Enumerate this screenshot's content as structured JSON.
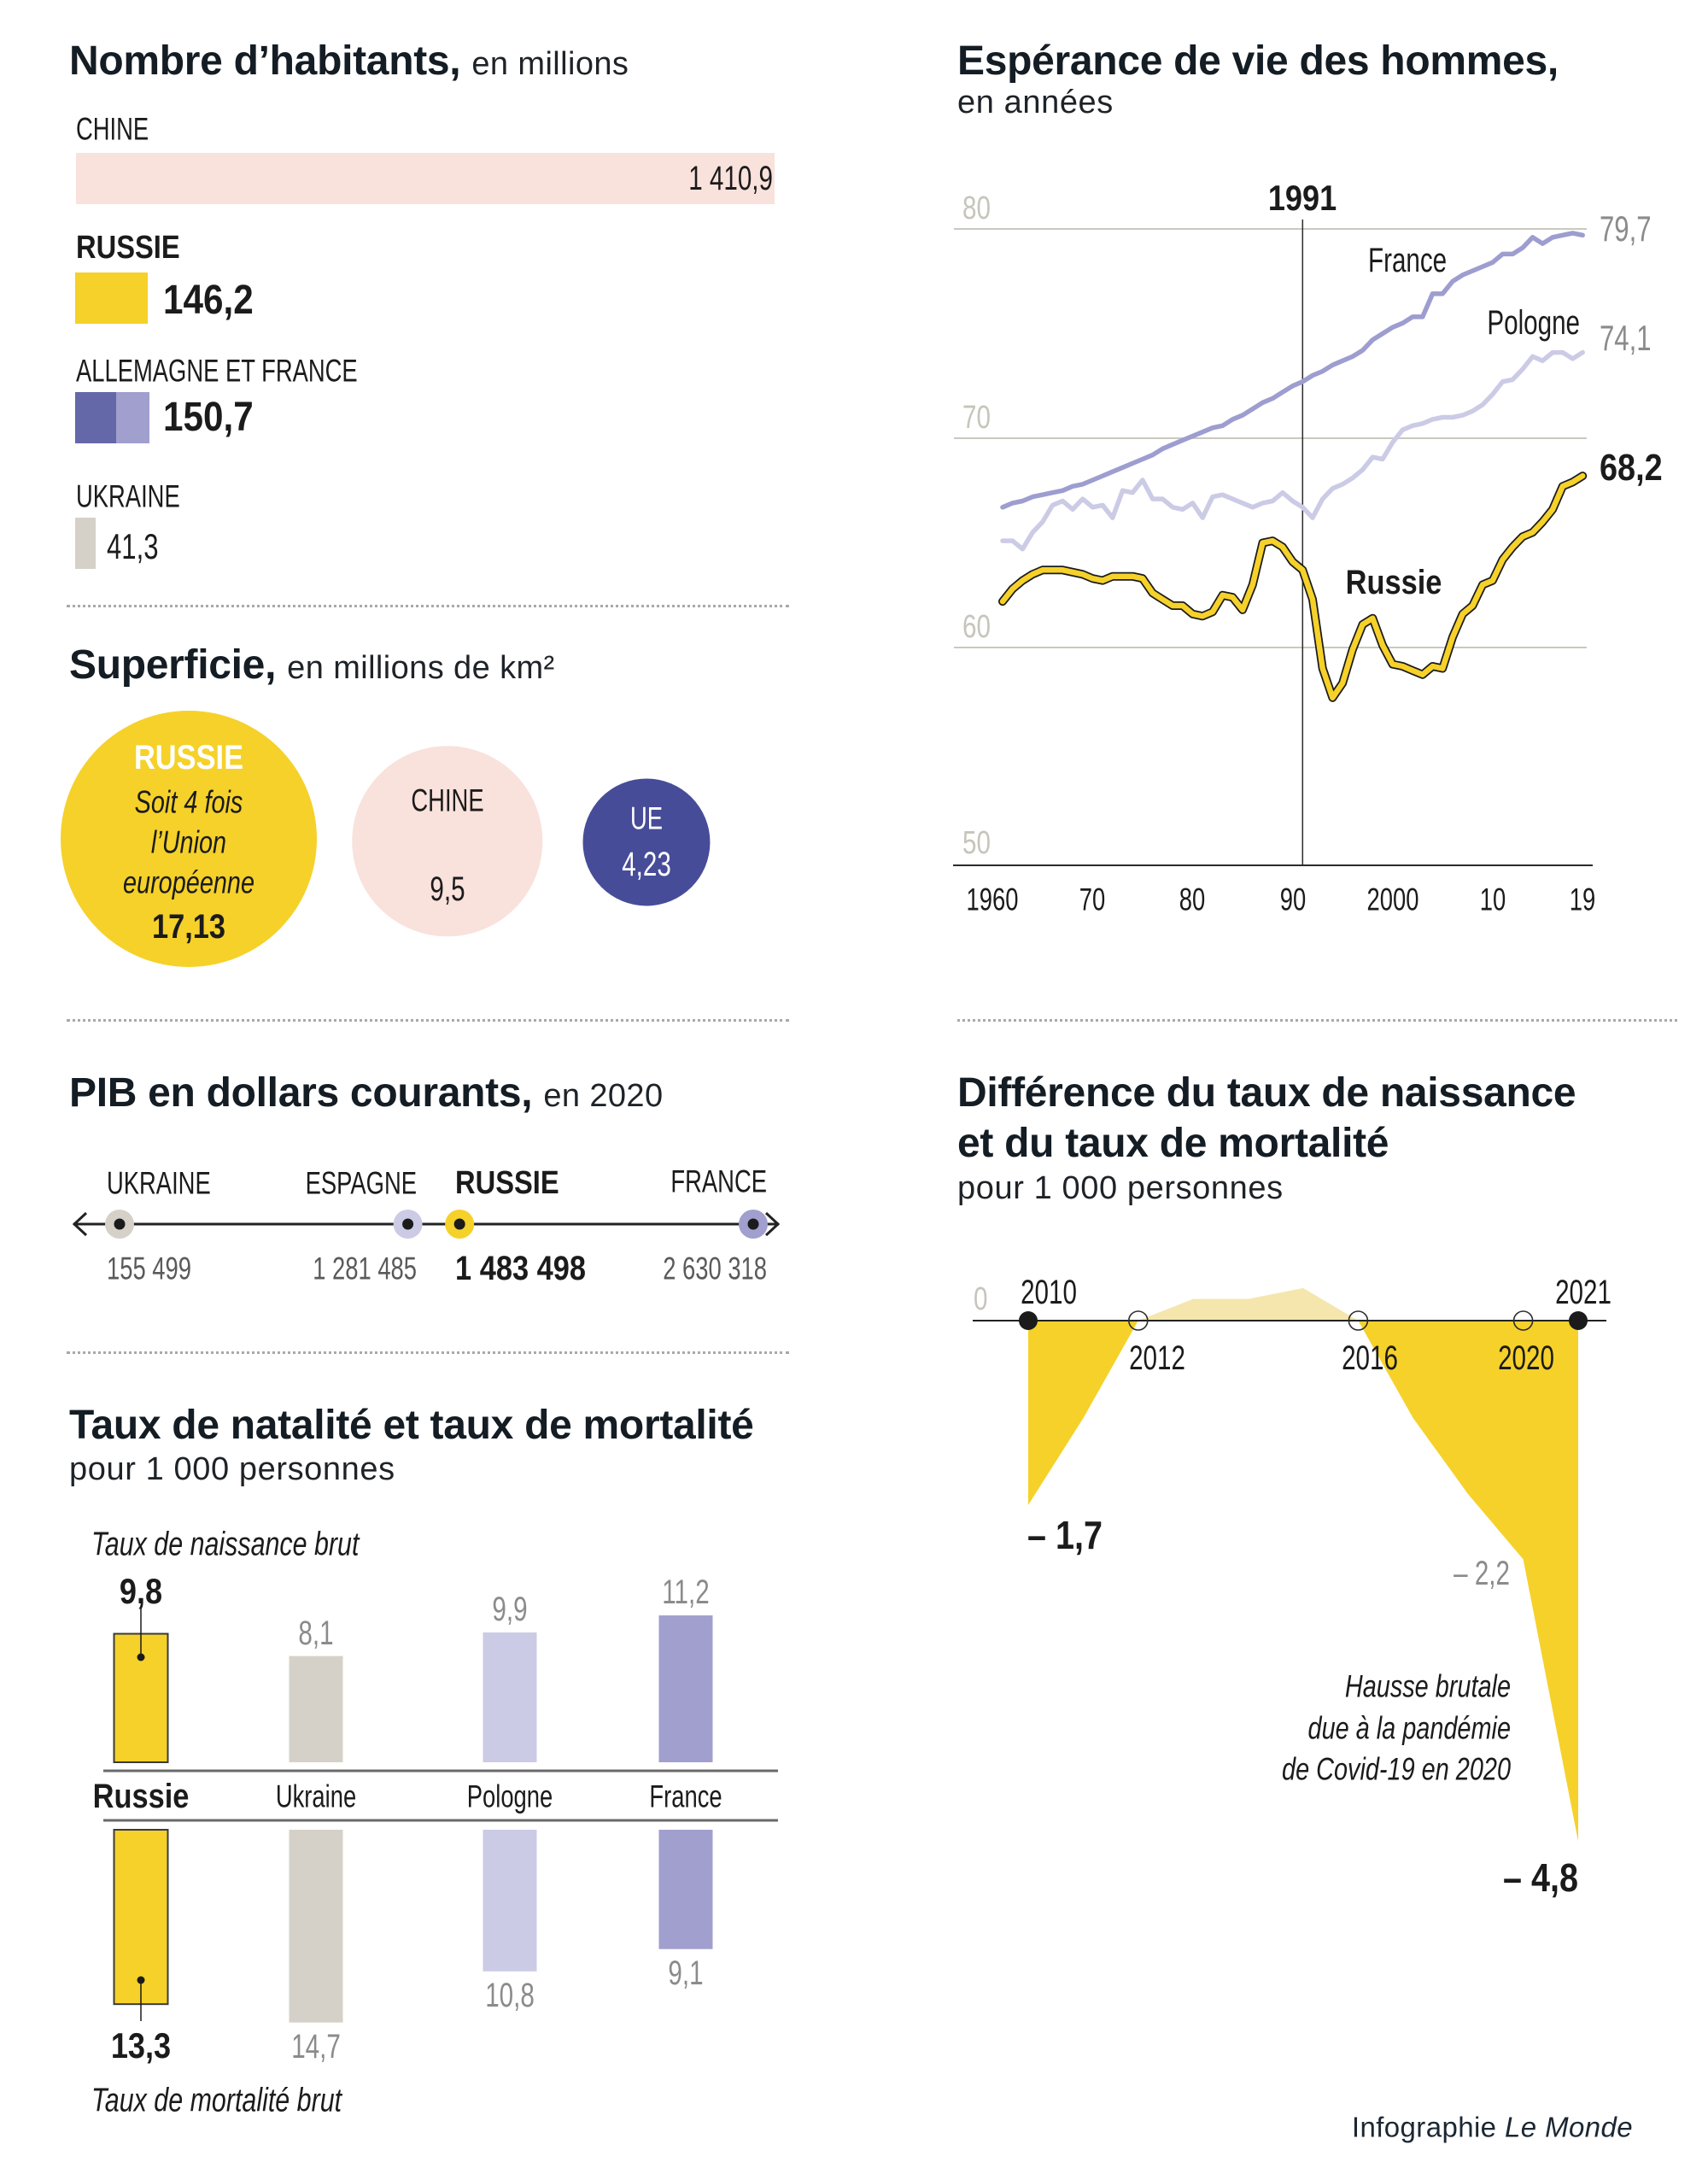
{
  "credit": {
    "prefix": "Infographie",
    "brand": "Le Monde"
  },
  "chart_data": [
    {
      "id": "population",
      "type": "bar",
      "title": "Nombre d’habitants,",
      "subtitle": "en millions",
      "categories": [
        "CHINE",
        "RUSSIE",
        "ALLEMAGNE ET FRANCE",
        "UKRAINE"
      ],
      "values": [
        1410.9,
        146.2,
        150.7,
        41.3
      ],
      "value_labels": [
        "1 410,9",
        "146,2",
        "150,7",
        "41,3"
      ],
      "colors": [
        "#F9E1DC",
        "#F5D12A",
        null,
        "#D5D1C8"
      ],
      "segmented_category": "ALLEMAGNE ET FRANCE",
      "segments": [
        {
          "name": "Allemagne",
          "value": 82.2,
          "color": "#6467A8"
        },
        {
          "name": "France",
          "value": 68.5,
          "color": "#A19FCE"
        }
      ],
      "highlight": "RUSSIE"
    },
    {
      "id": "superficie",
      "type": "scatter",
      "encoding": "bubble area proportional to value",
      "title": "Superficie,",
      "subtitle": "en millions de km²",
      "categories": [
        "RUSSIE",
        "CHINE",
        "UE"
      ],
      "values": [
        17.13,
        9.5,
        4.23
      ],
      "value_labels": [
        "17,13",
        "9,5",
        "4,23"
      ],
      "annotation": [
        "Soit 4 fois",
        "l’Union",
        "européenne"
      ],
      "colors": [
        "#F5D12A",
        "#F9E1DC",
        "#474C99"
      ]
    },
    {
      "id": "pib",
      "type": "scatter",
      "title": "PIB en dollars courants,",
      "subtitle": "en 2020",
      "categories": [
        "UKRAINE",
        "ESPAGNE",
        "RUSSIE",
        "FRANCE"
      ],
      "values": [
        155499,
        1281485,
        1483498,
        2630318
      ],
      "value_labels": [
        "155 499",
        "1 281 485",
        "1 483 498",
        "2 630 318"
      ],
      "colors": [
        "#D5D1C8",
        "#CBCBE6",
        "#F5D12A",
        "#A19FCE"
      ],
      "highlight": "RUSSIE"
    },
    {
      "id": "natalite",
      "type": "bar",
      "title": "Taux de natalité et taux de mortalité",
      "subtitle": "pour 1 000 personnes",
      "categories": [
        "Russie",
        "Ukraine",
        "Pologne",
        "France"
      ],
      "series": [
        {
          "name": "Taux de naissance brut",
          "values": [
            9.8,
            8.1,
            9.9,
            11.2
          ],
          "value_labels": [
            "9,8",
            "8,1",
            "9,9",
            "11,2"
          ]
        },
        {
          "name": "Taux de mortalité brut",
          "values": [
            13.3,
            14.7,
            10.8,
            9.1
          ],
          "value_labels": [
            "13,3",
            "14,7",
            "10,8",
            "9,1"
          ]
        }
      ],
      "colors": [
        "#F5D12A",
        "#D5D1C8",
        "#CBCBE6",
        "#A19FCE"
      ],
      "highlight": "Russie"
    },
    {
      "id": "esperance",
      "type": "line",
      "title": "Espérance de vie des hommes,",
      "subtitle": "en années",
      "x": [
        1961,
        1962,
        1963,
        1964,
        1965,
        1966,
        1967,
        1968,
        1969,
        1970,
        1971,
        1972,
        1973,
        1974,
        1975,
        1976,
        1977,
        1978,
        1979,
        1980,
        1981,
        1982,
        1983,
        1984,
        1985,
        1986,
        1987,
        1988,
        1989,
        1990,
        1991,
        1992,
        1993,
        1994,
        1995,
        1996,
        1997,
        1998,
        1999,
        2000,
        2001,
        2002,
        2003,
        2004,
        2005,
        2006,
        2007,
        2008,
        2009,
        2010,
        2011,
        2012,
        2013,
        2014,
        2015,
        2016,
        2017,
        2018,
        2019
      ],
      "series": [
        {
          "name": "France",
          "color": "#9E9DD0",
          "end_label": "79,7",
          "emphasis": false,
          "values": [
            66.7,
            66.9,
            67.0,
            67.2,
            67.3,
            67.4,
            67.5,
            67.7,
            67.8,
            68.0,
            68.2,
            68.4,
            68.6,
            68.8,
            69.0,
            69.2,
            69.5,
            69.7,
            69.9,
            70.1,
            70.3,
            70.5,
            70.6,
            70.9,
            71.1,
            71.4,
            71.7,
            71.9,
            72.2,
            72.5,
            72.7,
            73.0,
            73.2,
            73.5,
            73.7,
            73.9,
            74.2,
            74.7,
            75.0,
            75.3,
            75.5,
            75.8,
            75.8,
            76.9,
            76.9,
            77.5,
            77.8,
            78.0,
            78.2,
            78.4,
            78.8,
            78.8,
            79.1,
            79.6,
            79.3,
            79.6,
            79.7,
            79.8,
            79.7
          ]
        },
        {
          "name": "Pologne",
          "color": "#CBCBE6",
          "end_label": "74,1",
          "emphasis": false,
          "values": [
            65.1,
            65.1,
            64.7,
            65.5,
            66.0,
            66.8,
            67.0,
            66.6,
            67.1,
            66.7,
            66.8,
            66.2,
            67.5,
            67.4,
            68.0,
            67.1,
            67.1,
            66.7,
            66.6,
            66.9,
            66.2,
            67.2,
            67.3,
            67.1,
            66.9,
            66.7,
            66.9,
            67.0,
            67.4,
            67.0,
            66.7,
            66.2,
            67.1,
            67.6,
            67.8,
            68.1,
            68.5,
            69.1,
            69.0,
            69.8,
            70.4,
            70.6,
            70.7,
            70.9,
            71.0,
            71.0,
            71.1,
            71.3,
            71.6,
            72.1,
            72.7,
            72.8,
            73.3,
            73.9,
            73.7,
            74.1,
            74.1,
            73.8,
            74.1
          ]
        },
        {
          "name": "Russie",
          "color": "#F5D12A",
          "end_label": "68,2",
          "emphasis": true,
          "values": [
            62.2,
            62.8,
            63.2,
            63.5,
            63.7,
            63.7,
            63.7,
            63.6,
            63.5,
            63.3,
            63.2,
            63.4,
            63.4,
            63.4,
            63.3,
            62.6,
            62.3,
            62.0,
            62.0,
            61.6,
            61.5,
            61.7,
            62.5,
            62.4,
            61.8,
            63.0,
            65.0,
            65.1,
            64.8,
            64.1,
            63.7,
            62.3,
            59.0,
            57.6,
            58.3,
            59.9,
            61.1,
            61.4,
            60.1,
            59.2,
            59.1,
            58.9,
            58.7,
            59.1,
            59.0,
            60.5,
            61.6,
            62.0,
            63.0,
            63.2,
            64.2,
            64.8,
            65.3,
            65.5,
            66.0,
            66.6,
            67.7,
            67.9,
            68.2
          ]
        }
      ],
      "ylim": [
        50,
        80
      ],
      "yticks": [
        80,
        70,
        60,
        50
      ],
      "ytick_labels": [
        "80",
        "70",
        "60",
        "50"
      ],
      "xticks": [
        1960,
        1970,
        1980,
        1990,
        2000,
        2010,
        2019
      ],
      "xtick_labels": [
        "1960",
        "70",
        "80",
        "90",
        "2000",
        "10",
        "19"
      ],
      "annotation": {
        "year": 1991,
        "label": "1991"
      },
      "grid": true
    },
    {
      "id": "difference",
      "type": "area",
      "title_lines": [
        "Différence du taux de naissance",
        "et du taux de mortalité"
      ],
      "subtitle": "pour 1 000 personnes",
      "point_index": [
        0,
        1,
        2,
        3,
        4,
        5,
        6,
        7,
        8,
        9,
        10
      ],
      "values": [
        -1.7,
        -0.9,
        0.0,
        0.2,
        0.2,
        0.3,
        0.0,
        -0.9,
        -1.6,
        -2.2,
        -4.8
      ],
      "zero_label": "0",
      "markers": [
        {
          "index": 0,
          "label": "2010",
          "filled": true,
          "label_position": "above"
        },
        {
          "index": 2,
          "label": "2012",
          "filled": false,
          "label_position": "below"
        },
        {
          "index": 6,
          "label": "2016",
          "filled": false,
          "label_position": "below"
        },
        {
          "index": 9,
          "label": "2020",
          "filled": false,
          "label_position": "below"
        },
        {
          "index": 10,
          "label": "2021",
          "filled": true,
          "label_position": "above"
        }
      ],
      "value_labels": [
        {
          "index": 0,
          "label": "– 1,7",
          "emphasis": true
        },
        {
          "index": 9,
          "label": "– 2,2",
          "emphasis": false
        },
        {
          "index": 10,
          "label": "– 4,8",
          "emphasis": true
        }
      ],
      "annotation": [
        "Hausse brutale",
        "due à la pandémie",
        "de Covid-19 en 2020"
      ],
      "colors": {
        "negative": "#F5D12A",
        "positive": "#F5E6AD"
      }
    }
  ]
}
